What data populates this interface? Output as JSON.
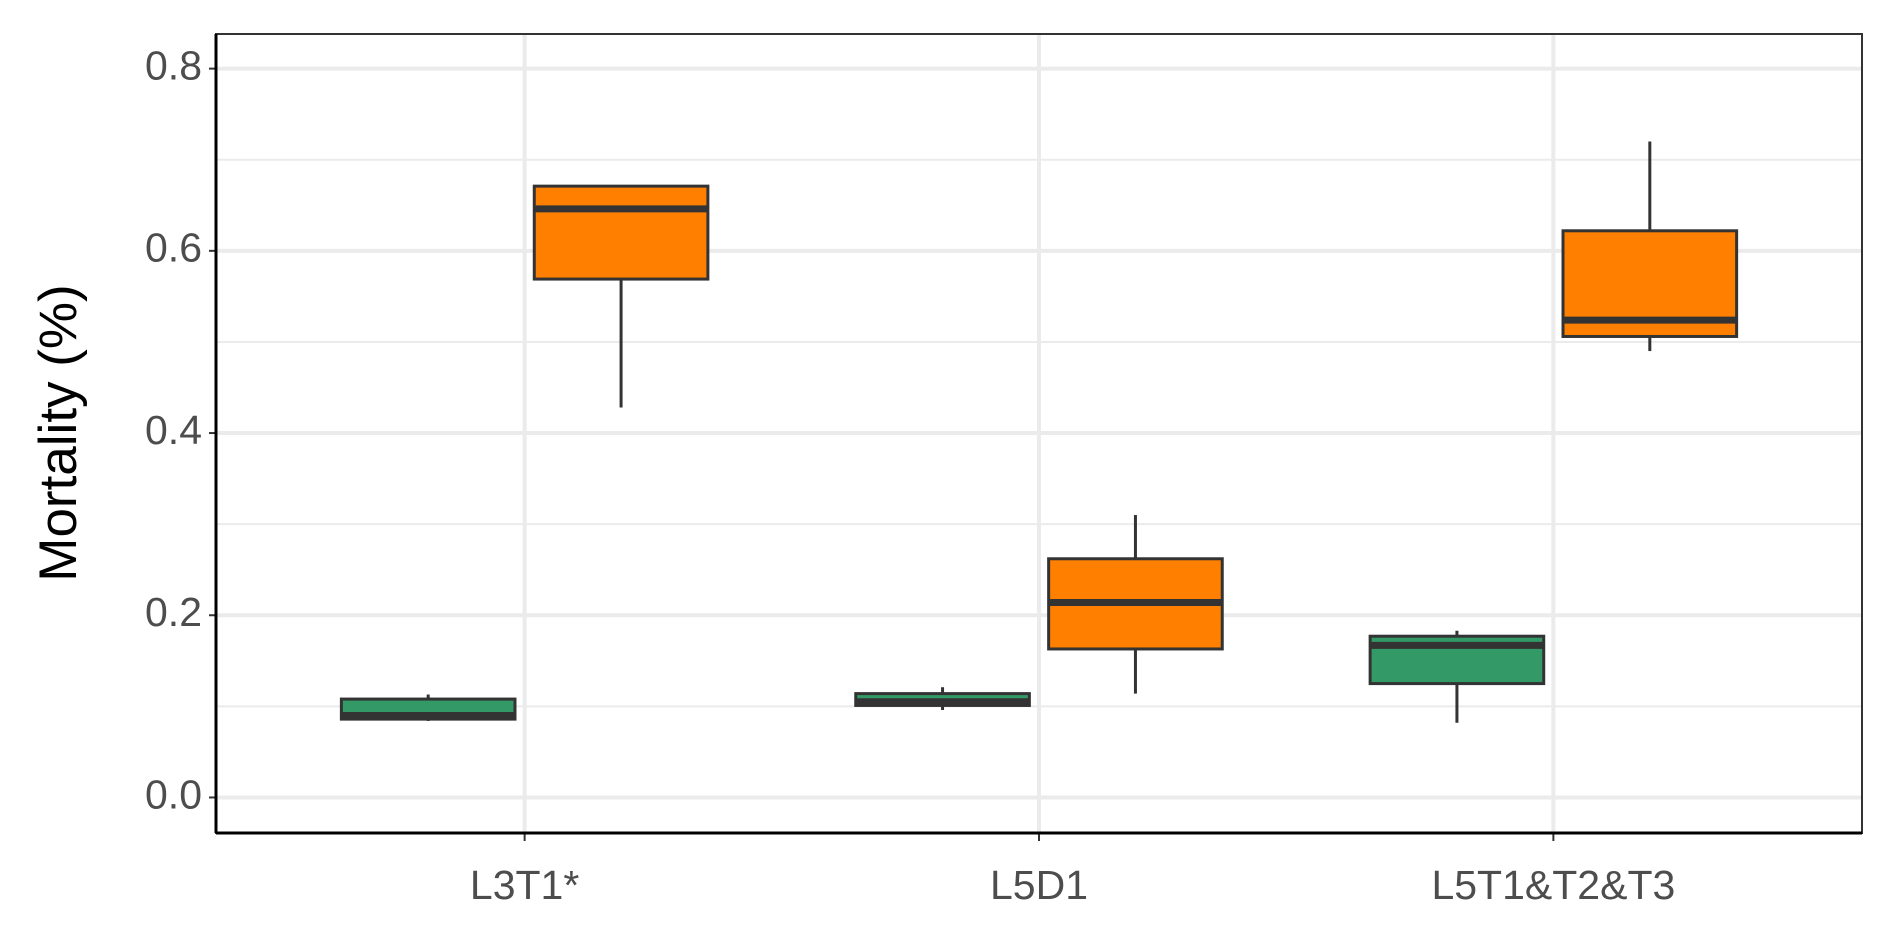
{
  "chart_data": {
    "type": "box",
    "y_label": "Mortality (%)",
    "categories": [
      "L3T1*",
      "L5D1",
      "L5T1&T2&T3"
    ],
    "series": [
      {
        "color": "#339966",
        "low": [
          0.084,
          0.096,
          0.082
        ],
        "q1": [
          0.086,
          0.101,
          0.125
        ],
        "median": [
          0.09,
          0.105,
          0.167
        ],
        "q3": [
          0.108,
          0.114,
          0.177
        ],
        "high": [
          0.113,
          0.121,
          0.183
        ]
      },
      {
        "color": "#ff8000",
        "low": [
          0.428,
          0.114,
          0.49
        ],
        "q1": [
          0.569,
          0.163,
          0.506
        ],
        "median": [
          0.646,
          0.214,
          0.524
        ],
        "q3": [
          0.671,
          0.262,
          0.622
        ],
        "high": [
          0.671,
          0.31,
          0.72
        ]
      }
    ],
    "ylim": [
      -0.039,
      0.838
    ],
    "yticks": [
      {
        "value": 0,
        "label": "0.0"
      },
      0.2,
      0.4,
      0.6,
      0.8
    ],
    "minor_yticks": [
      0.1,
      0.3,
      0.5,
      0.7
    ],
    "grid": true
  }
}
